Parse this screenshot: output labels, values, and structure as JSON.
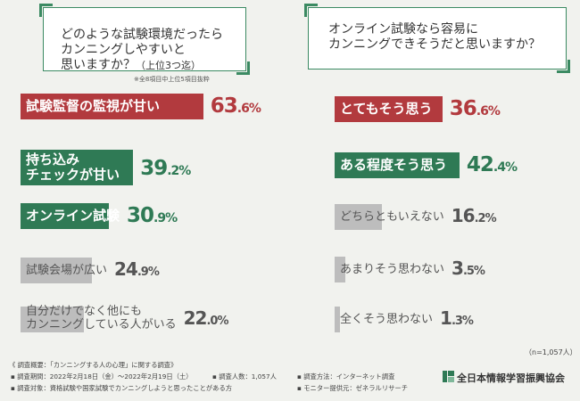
{
  "left": {
    "question_main": "どのような試験環境だったら\nカンニングしやすいと\n思いますか？",
    "question_suffix": "（上位3つ迄）",
    "note": "※全8項目中上位5項目抜粋"
  },
  "right": {
    "question": "オンライン試験なら容易に\nカンニングできそうだと思いますか？",
    "n_label": "（n=1,057人）"
  },
  "chart_data": [
    {
      "type": "bar",
      "title": "どのような試験環境だったらカンニングしやすいと思いますか？（上位3つ迄）",
      "categories": [
        "試験監督の監視が甘い",
        "持ち込み\nチェックが甘い",
        "オンライン試験",
        "試験会場が広い",
        "自分だけでなく他にも\nカンニングしている人がいる"
      ],
      "values": [
        63.6,
        39.2,
        30.9,
        24.9,
        22.0
      ],
      "value_labels": [
        {
          "i": "63",
          "d": ".6%"
        },
        {
          "i": "39",
          "d": ".2%"
        },
        {
          "i": "30",
          "d": ".9%"
        },
        {
          "i": "24",
          "d": ".9%"
        },
        {
          "i": "22",
          "d": ".0%"
        }
      ],
      "colors": [
        "red",
        "green",
        "green",
        "gray",
        "gray"
      ],
      "xlim": [
        0,
        100
      ]
    },
    {
      "type": "bar",
      "title": "オンライン試験なら容易にカンニングできそうだと思いますか？",
      "categories": [
        "とてもそう思う",
        "ある程度そう思う",
        "どちらともいえない",
        "あまりそう思わない",
        "全くそう思わない"
      ],
      "values": [
        36.6,
        42.4,
        16.2,
        3.5,
        1.3
      ],
      "value_labels": [
        {
          "i": "36",
          "d": ".6%"
        },
        {
          "i": "42",
          "d": ".4%"
        },
        {
          "i": "16",
          "d": ".2%"
        },
        {
          "i": "3",
          "d": ".5%"
        },
        {
          "i": "1",
          "d": ".3%"
        }
      ],
      "colors": [
        "red",
        "green",
        "gray",
        "gray",
        "gray"
      ],
      "xlim": [
        0,
        100
      ]
    }
  ],
  "footer": {
    "line1": "《 調査概要：「カンニングする人の心理」に関する調査》",
    "line2a": "▪ 調査期間：2022年2月18日（金）〜2022年2月19日（土）",
    "line2b": "▪ 調査人数：1,057人",
    "line2c": "▪ 調査方法：インターネット調査",
    "line3a": "▪ 調査対象：資格試験や国家試験でカンニングしようと思ったことがある方",
    "line3b": "▪ モニター提供元：ゼネラルリサーチ",
    "org": "全日本情報学習振興協会"
  },
  "colors": {
    "red": "#b23a3e",
    "green": "#2f7a55",
    "gray": "#bdbdbd",
    "bg": "#f1f2ee"
  }
}
